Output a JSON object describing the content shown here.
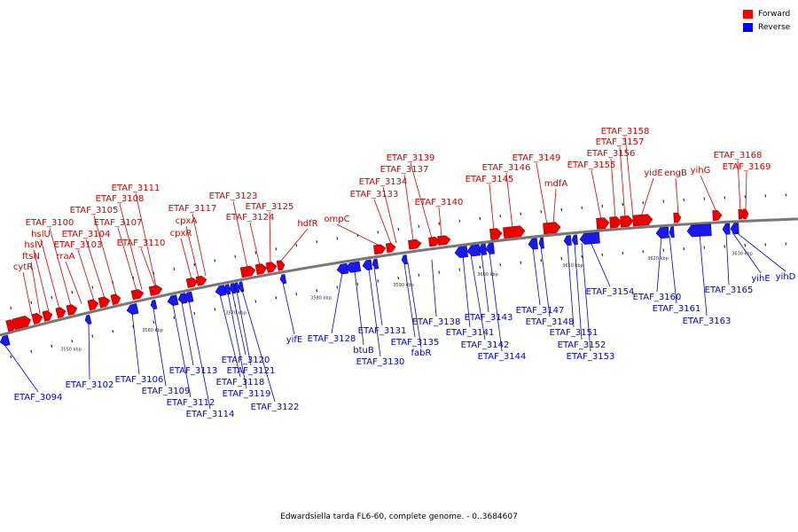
{
  "legend": {
    "forward": {
      "label": "Forward",
      "color": "#ff0000"
    },
    "reverse": {
      "label": "Reverse",
      "color": "#0000ff"
    }
  },
  "caption": "Edwardsiella tarda FL6-60, complete genome. - 0..3684607",
  "scale_labels": [
    "3550 kbp",
    "3560 kbp",
    "3570 kbp",
    "3580 kbp",
    "3590 kbp",
    "3600 kbp",
    "3610 kbp",
    "3620 kbp",
    "3630 kbp"
  ],
  "forward_labels": [
    "cytR",
    "ftsN",
    "hslV",
    "hslU",
    "ETAF_3100",
    "rraA",
    "ETAF_3103",
    "ETAF_3104",
    "ETAF_3105",
    "ETAF_3107",
    "ETAF_3108",
    "ETAF_3110",
    "ETAF_3111",
    "cpxR",
    "cpxA",
    "ETAF_3117",
    "ETAF_3123",
    "ETAF_3124",
    "ETAF_3125",
    "hdfR",
    "ompC",
    "ETAF_3133",
    "ETAF_3134",
    "ETAF_3137",
    "ETAF_3139",
    "ETAF_3140",
    "ETAF_3145",
    "ETAF_3146",
    "ETAF_3149",
    "mdfA",
    "ETAF_3155",
    "ETAF_3156",
    "ETAF_3157",
    "ETAF_3158",
    "yidE",
    "engB",
    "yihG",
    "ETAF_3168",
    "ETAF_3169"
  ],
  "reverse_labels": [
    "ETAF_3094",
    "ETAF_3102",
    "ETAF_3106",
    "ETAF_3109",
    "ETAF_3112",
    "ETAF_3113",
    "ETAF_3114",
    "ETAF_3118",
    "ETAF_3119",
    "ETAF_3120",
    "ETAF_3121",
    "ETAF_3122",
    "yifE",
    "ETAF_3128",
    "btuB",
    "ETAF_3130",
    "ETAF_3131",
    "ETAF_3135",
    "fabR",
    "ETAF_3138",
    "ETAF_3141",
    "ETAF_3142",
    "ETAF_3143",
    "ETAF_3144",
    "ETAF_3147",
    "ETAF_3148",
    "ETAF_3151",
    "ETAF_3152",
    "ETAF_3153",
    "ETAF_3154",
    "ETAF_3160",
    "ETAF_3161",
    "ETAF_3163",
    "ETAF_3165",
    "yihE",
    "yihD"
  ]
}
